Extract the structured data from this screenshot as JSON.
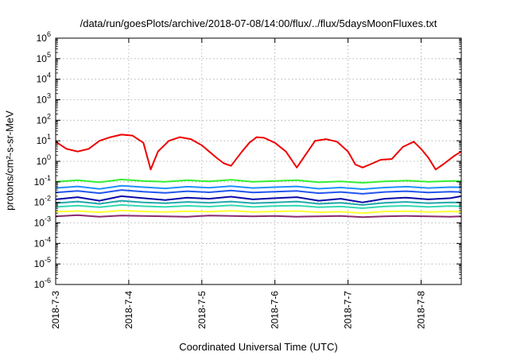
{
  "chart_data": {
    "type": "line",
    "title": "/data/run/goesPlots/archive/2018-07-08/14:00/flux/../flux/5daysMoonFluxes.txt",
    "xlabel": "Coordinated Universal Time (UTC)",
    "ylabel": "protons/cm²-s-sr-MeV",
    "y_scale": "log",
    "ylim": [
      1e-06,
      1000000.0
    ],
    "xlim": [
      0,
      5.55
    ],
    "grid": true,
    "x_ticks": [
      {
        "value": 0,
        "label": "2018-7-3"
      },
      {
        "value": 1,
        "label": "2018-7-4"
      },
      {
        "value": 2,
        "label": "2018-7-5"
      },
      {
        "value": 3,
        "label": "2018-7-6"
      },
      {
        "value": 4,
        "label": "2018-7-7"
      },
      {
        "value": 5,
        "label": "2018-7-8"
      }
    ],
    "y_ticks": [
      {
        "value": 1000000.0,
        "base": "10",
        "exp": "6"
      },
      {
        "value": 100000.0,
        "base": "10",
        "exp": "5"
      },
      {
        "value": 10000.0,
        "base": "10",
        "exp": "4"
      },
      {
        "value": 1000.0,
        "base": "10",
        "exp": "3"
      },
      {
        "value": 100.0,
        "base": "10",
        "exp": "2"
      },
      {
        "value": 10.0,
        "base": "10",
        "exp": "1"
      },
      {
        "value": 1,
        "base": "10",
        "exp": "0"
      },
      {
        "value": 0.1,
        "base": "10",
        "exp": "-1"
      },
      {
        "value": 0.01,
        "base": "10",
        "exp": "-2"
      },
      {
        "value": 0.001,
        "base": "10",
        "exp": "-3"
      },
      {
        "value": 0.0001,
        "base": "10",
        "exp": "-4"
      },
      {
        "value": 1e-05,
        "base": "10",
        "exp": "-5"
      },
      {
        "value": 1e-06,
        "base": "10",
        "exp": "-6"
      }
    ],
    "series": [
      {
        "color": "#8b2a6e",
        "x": [
          0.0,
          0.3,
          0.6,
          0.9,
          1.2,
          1.5,
          1.8,
          2.1,
          2.4,
          2.7,
          3.0,
          3.3,
          3.6,
          3.9,
          4.2,
          4.5,
          4.8,
          5.1,
          5.4,
          5.55
        ],
        "y": [
          0.0021,
          0.0024,
          0.002,
          0.0023,
          0.0022,
          0.0021,
          0.002,
          0.0023,
          0.0022,
          0.0021,
          0.0022,
          0.002,
          0.0021,
          0.0022,
          0.0019,
          0.0021,
          0.0022,
          0.0021,
          0.002,
          0.0021
        ]
      },
      {
        "color": "#ffff33",
        "x": [
          0.0,
          0.3,
          0.6,
          0.9,
          1.2,
          1.5,
          1.8,
          2.1,
          2.4,
          2.7,
          3.0,
          3.3,
          3.6,
          3.9,
          4.2,
          4.5,
          4.8,
          5.1,
          5.4,
          5.55
        ],
        "y": [
          0.0035,
          0.0038,
          0.0033,
          0.004,
          0.0036,
          0.0034,
          0.0037,
          0.0035,
          0.0039,
          0.0034,
          0.0036,
          0.0038,
          0.0033,
          0.0035,
          0.003,
          0.0036,
          0.0037,
          0.0034,
          0.0036,
          0.0035
        ]
      },
      {
        "color": "#33d9b2",
        "x": [
          0.0,
          0.3,
          0.6,
          0.9,
          1.2,
          1.5,
          1.8,
          2.1,
          2.4,
          2.7,
          3.0,
          3.3,
          3.6,
          3.9,
          4.2,
          4.5,
          4.8,
          5.1,
          5.4,
          5.55
        ],
        "y": [
          0.006,
          0.007,
          0.0058,
          0.0075,
          0.0065,
          0.006,
          0.0068,
          0.0062,
          0.0072,
          0.006,
          0.0066,
          0.007,
          0.0058,
          0.0063,
          0.0052,
          0.0064,
          0.0068,
          0.006,
          0.0066,
          0.0064
        ]
      },
      {
        "color": "#22aaaa",
        "x": [
          0.0,
          0.3,
          0.6,
          0.9,
          1.2,
          1.5,
          1.8,
          2.1,
          2.4,
          2.7,
          3.0,
          3.3,
          3.6,
          3.9,
          4.2,
          4.5,
          4.8,
          5.1,
          5.4,
          5.55
        ],
        "y": [
          0.009,
          0.011,
          0.0085,
          0.012,
          0.01,
          0.009,
          0.0105,
          0.0095,
          0.011,
          0.009,
          0.01,
          0.011,
          0.0085,
          0.0095,
          0.0075,
          0.0095,
          0.0105,
          0.009,
          0.01,
          0.0098
        ]
      },
      {
        "color": "#0a0aa8",
        "x": [
          0.0,
          0.3,
          0.6,
          0.9,
          1.2,
          1.5,
          1.8,
          2.1,
          2.4,
          2.7,
          3.0,
          3.3,
          3.6,
          3.9,
          4.2,
          4.5,
          4.8,
          5.1,
          5.4,
          5.55
        ],
        "y": [
          0.014,
          0.018,
          0.012,
          0.02,
          0.016,
          0.013,
          0.017,
          0.015,
          0.019,
          0.014,
          0.016,
          0.018,
          0.012,
          0.015,
          0.01,
          0.015,
          0.017,
          0.014,
          0.016,
          0.02
        ]
      },
      {
        "color": "#2255ee",
        "x": [
          0.0,
          0.3,
          0.6,
          0.9,
          1.2,
          1.5,
          1.8,
          2.1,
          2.4,
          2.7,
          3.0,
          3.3,
          3.6,
          3.9,
          4.2,
          4.5,
          4.8,
          5.1,
          5.4,
          5.55
        ],
        "y": [
          0.03,
          0.036,
          0.028,
          0.04,
          0.033,
          0.029,
          0.035,
          0.031,
          0.038,
          0.03,
          0.033,
          0.036,
          0.028,
          0.032,
          0.026,
          0.032,
          0.035,
          0.03,
          0.033,
          0.032
        ]
      },
      {
        "color": "#1e90ff",
        "x": [
          0.0,
          0.3,
          0.6,
          0.9,
          1.2,
          1.5,
          1.8,
          2.1,
          2.4,
          2.7,
          3.0,
          3.3,
          3.6,
          3.9,
          4.2,
          4.5,
          4.8,
          5.1,
          5.4,
          5.55
        ],
        "y": [
          0.05,
          0.06,
          0.045,
          0.065,
          0.055,
          0.048,
          0.058,
          0.052,
          0.062,
          0.05,
          0.055,
          0.06,
          0.046,
          0.053,
          0.044,
          0.053,
          0.058,
          0.05,
          0.055,
          0.054
        ]
      },
      {
        "color": "#33ee33",
        "x": [
          0.0,
          0.3,
          0.6,
          0.9,
          1.2,
          1.5,
          1.8,
          2.1,
          2.4,
          2.7,
          3.0,
          3.3,
          3.6,
          3.9,
          4.2,
          4.5,
          4.8,
          5.1,
          5.4,
          5.55
        ],
        "y": [
          0.1,
          0.12,
          0.095,
          0.13,
          0.11,
          0.1,
          0.12,
          0.105,
          0.125,
          0.1,
          0.11,
          0.12,
          0.095,
          0.105,
          0.09,
          0.105,
          0.115,
          0.1,
          0.11,
          0.11
        ]
      },
      {
        "color": "#ee0000",
        "x": [
          0.0,
          0.15,
          0.3,
          0.45,
          0.6,
          0.75,
          0.9,
          1.05,
          1.2,
          1.3,
          1.4,
          1.55,
          1.7,
          1.85,
          2.0,
          2.1,
          2.2,
          2.3,
          2.4,
          2.55,
          2.65,
          2.75,
          2.85,
          3.0,
          3.15,
          3.3,
          3.45,
          3.55,
          3.7,
          3.85,
          4.0,
          4.1,
          4.2,
          4.3,
          4.45,
          4.6,
          4.75,
          4.9,
          5.0,
          5.1,
          5.2,
          5.3,
          5.45,
          5.55
        ],
        "y": [
          9,
          4,
          3,
          4,
          10,
          15,
          20,
          18,
          8,
          0.4,
          3,
          10,
          15,
          12,
          6,
          3,
          1.5,
          0.8,
          0.6,
          3,
          8,
          15,
          14,
          8,
          3,
          0.5,
          3,
          10,
          12,
          9,
          3,
          0.7,
          0.5,
          0.7,
          1.2,
          1.3,
          5,
          9,
          4,
          1.5,
          0.4,
          0.7,
          1.8,
          3
        ]
      }
    ]
  }
}
